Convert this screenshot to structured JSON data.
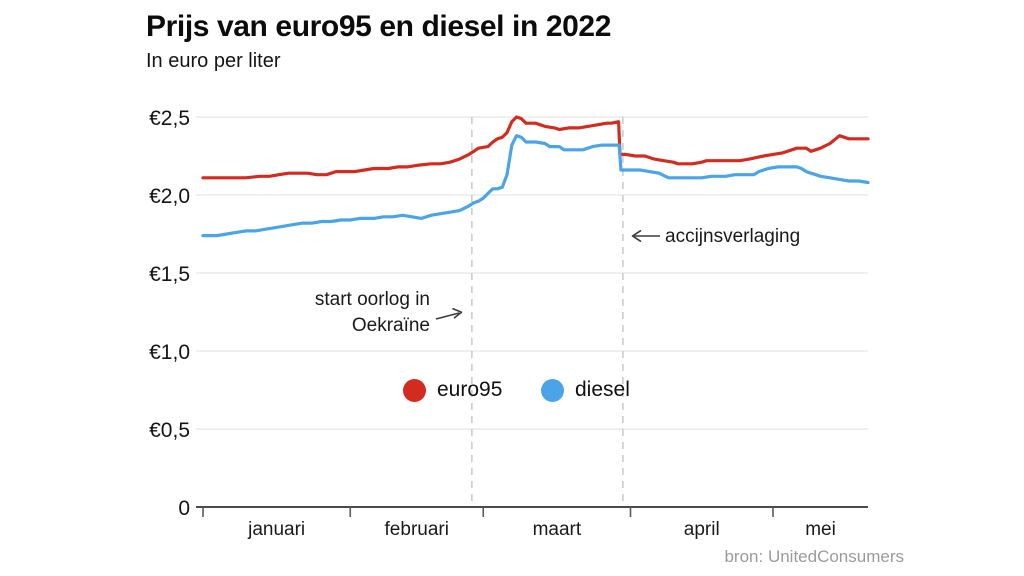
{
  "title": "Prijs van euro95 en diesel in 2022",
  "subtitle": "In euro per liter",
  "source": "bron: UnitedConsumers",
  "legend": {
    "items": [
      {
        "label": "euro95",
        "color": "#d22b1f"
      },
      {
        "label": "diesel",
        "color": "#4ba4e8"
      }
    ]
  },
  "chart_data": {
    "type": "line",
    "title": "Prijs van euro95 en diesel in 2022",
    "ylabel": "In euro per liter",
    "x_unit": "days since 1 jan 2022",
    "x_range": [
      0,
      140
    ],
    "y_range": [
      0,
      2.5
    ],
    "grid": "horizontal",
    "legend_position": "inside-center",
    "colors": {
      "grid": "#e7e7e7",
      "event_line": "#c9c9c9",
      "axis": "#4a4a4a",
      "tick": "#5a5a5a",
      "label": "#1a1a1a"
    },
    "y_ticks": [
      {
        "value": 0,
        "label": "0"
      },
      {
        "value": 0.5,
        "label": "€0,5"
      },
      {
        "value": 1,
        "label": "€1,0"
      },
      {
        "value": 1.5,
        "label": "€1,5"
      },
      {
        "value": 2,
        "label": "€2,0"
      },
      {
        "value": 2.5,
        "label": "€2,5"
      }
    ],
    "months": [
      {
        "label": "januari",
        "start_day": 0,
        "end_day": 31
      },
      {
        "label": "februari",
        "start_day": 31,
        "end_day": 59
      },
      {
        "label": "maart",
        "start_day": 59,
        "end_day": 90
      },
      {
        "label": "april",
        "start_day": 90,
        "end_day": 120
      },
      {
        "label": "mei",
        "start_day": 120,
        "end_day": 140
      }
    ],
    "annotations": [
      {
        "lines": [
          "start oorlog in",
          "Oekraïne"
        ],
        "day": 56.6,
        "arrow": "right"
      },
      {
        "lines": [
          "accijnsverlaging"
        ],
        "day": 88.4,
        "arrow": "left"
      }
    ],
    "series": [
      {
        "name": "euro95",
        "color": "#d22b1f",
        "points": [
          [
            0,
            2.11
          ],
          [
            6,
            2.11
          ],
          [
            9,
            2.11
          ],
          [
            12,
            2.12
          ],
          [
            14,
            2.12
          ],
          [
            16,
            2.13
          ],
          [
            18,
            2.14
          ],
          [
            22,
            2.14
          ],
          [
            24,
            2.13
          ],
          [
            26,
            2.13
          ],
          [
            28,
            2.15
          ],
          [
            32,
            2.15
          ],
          [
            34,
            2.16
          ],
          [
            36,
            2.17
          ],
          [
            39,
            2.17
          ],
          [
            41,
            2.18
          ],
          [
            43,
            2.18
          ],
          [
            45,
            2.19
          ],
          [
            48,
            2.2
          ],
          [
            50,
            2.2
          ],
          [
            52,
            2.21
          ],
          [
            54,
            2.23
          ],
          [
            56,
            2.26
          ],
          [
            57,
            2.28
          ],
          [
            58,
            2.3
          ],
          [
            60,
            2.31
          ],
          [
            61,
            2.34
          ],
          [
            62,
            2.36
          ],
          [
            63,
            2.37
          ],
          [
            64,
            2.4
          ],
          [
            65,
            2.47
          ],
          [
            66,
            2.5
          ],
          [
            67,
            2.49
          ],
          [
            68,
            2.46
          ],
          [
            70,
            2.46
          ],
          [
            72,
            2.44
          ],
          [
            74,
            2.43
          ],
          [
            75,
            2.42
          ],
          [
            77,
            2.43
          ],
          [
            79,
            2.43
          ],
          [
            81,
            2.44
          ],
          [
            83,
            2.45
          ],
          [
            85,
            2.46
          ],
          [
            86,
            2.46
          ],
          [
            87.5,
            2.47
          ],
          [
            87.8,
            2.26
          ],
          [
            89,
            2.26
          ],
          [
            91,
            2.25
          ],
          [
            93,
            2.25
          ],
          [
            95,
            2.23
          ],
          [
            97,
            2.22
          ],
          [
            99,
            2.21
          ],
          [
            100,
            2.2
          ],
          [
            103,
            2.2
          ],
          [
            105,
            2.21
          ],
          [
            106,
            2.22
          ],
          [
            109,
            2.22
          ],
          [
            111,
            2.22
          ],
          [
            113,
            2.22
          ],
          [
            115,
            2.23
          ],
          [
            118,
            2.25
          ],
          [
            120,
            2.26
          ],
          [
            122,
            2.27
          ],
          [
            124,
            2.29
          ],
          [
            125,
            2.3
          ],
          [
            127,
            2.3
          ],
          [
            128,
            2.28
          ],
          [
            130,
            2.3
          ],
          [
            132,
            2.33
          ],
          [
            134,
            2.38
          ],
          [
            135,
            2.37
          ],
          [
            136,
            2.36
          ],
          [
            138,
            2.36
          ],
          [
            140,
            2.36
          ]
        ]
      },
      {
        "name": "diesel",
        "color": "#4ba4e8",
        "points": [
          [
            0,
            1.74
          ],
          [
            3,
            1.74
          ],
          [
            5,
            1.75
          ],
          [
            7,
            1.76
          ],
          [
            9,
            1.77
          ],
          [
            11,
            1.77
          ],
          [
            13,
            1.78
          ],
          [
            15,
            1.79
          ],
          [
            17,
            1.8
          ],
          [
            19,
            1.81
          ],
          [
            21,
            1.82
          ],
          [
            23,
            1.82
          ],
          [
            25,
            1.83
          ],
          [
            27,
            1.83
          ],
          [
            29,
            1.84
          ],
          [
            31,
            1.84
          ],
          [
            33,
            1.85
          ],
          [
            36,
            1.85
          ],
          [
            38,
            1.86
          ],
          [
            40,
            1.86
          ],
          [
            42,
            1.87
          ],
          [
            44,
            1.86
          ],
          [
            46,
            1.85
          ],
          [
            48,
            1.87
          ],
          [
            50,
            1.88
          ],
          [
            52,
            1.89
          ],
          [
            54,
            1.9
          ],
          [
            56,
            1.93
          ],
          [
            57,
            1.95
          ],
          [
            58,
            1.96
          ],
          [
            59,
            1.98
          ],
          [
            60,
            2.01
          ],
          [
            61,
            2.04
          ],
          [
            62,
            2.04
          ],
          [
            63,
            2.05
          ],
          [
            64,
            2.13
          ],
          [
            65,
            2.32
          ],
          [
            66,
            2.38
          ],
          [
            67,
            2.37
          ],
          [
            68,
            2.34
          ],
          [
            70,
            2.34
          ],
          [
            72,
            2.33
          ],
          [
            73,
            2.31
          ],
          [
            75,
            2.31
          ],
          [
            76,
            2.29
          ],
          [
            78,
            2.29
          ],
          [
            80,
            2.29
          ],
          [
            82,
            2.31
          ],
          [
            84,
            2.32
          ],
          [
            86,
            2.32
          ],
          [
            87.6,
            2.32
          ],
          [
            88,
            2.16
          ],
          [
            90,
            2.16
          ],
          [
            92,
            2.16
          ],
          [
            94,
            2.15
          ],
          [
            96,
            2.14
          ],
          [
            98,
            2.11
          ],
          [
            101,
            2.11
          ],
          [
            103,
            2.11
          ],
          [
            105,
            2.11
          ],
          [
            107,
            2.12
          ],
          [
            110,
            2.12
          ],
          [
            112,
            2.13
          ],
          [
            114,
            2.13
          ],
          [
            116,
            2.13
          ],
          [
            117,
            2.15
          ],
          [
            119,
            2.17
          ],
          [
            121,
            2.18
          ],
          [
            123,
            2.18
          ],
          [
            125,
            2.18
          ],
          [
            126,
            2.17
          ],
          [
            127,
            2.15
          ],
          [
            128,
            2.14
          ],
          [
            129,
            2.13
          ],
          [
            130,
            2.12
          ],
          [
            132,
            2.11
          ],
          [
            134,
            2.1
          ],
          [
            136,
            2.09
          ],
          [
            138,
            2.09
          ],
          [
            140,
            2.08
          ]
        ]
      }
    ]
  }
}
